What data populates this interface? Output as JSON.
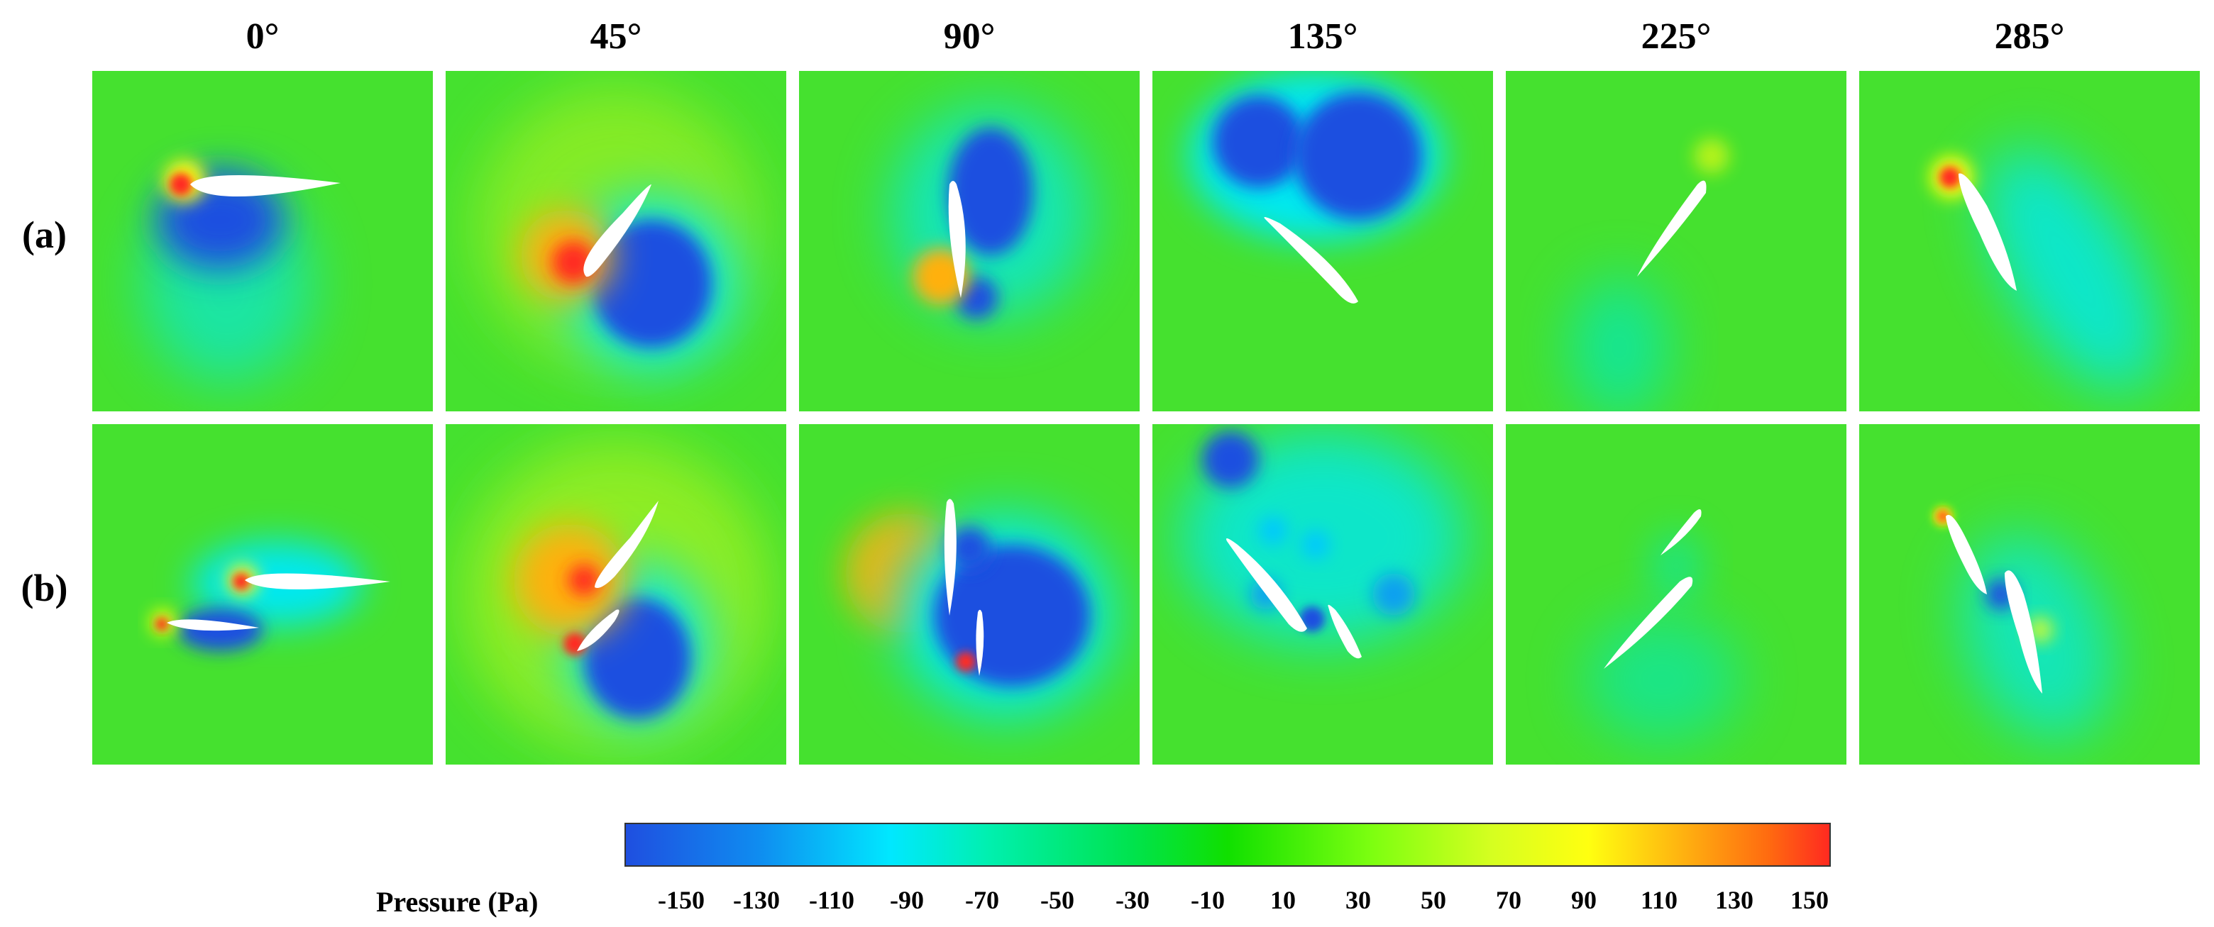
{
  "columns": [
    "0°",
    "45°",
    "90°",
    "135°",
    "225°",
    "285°"
  ],
  "rows": [
    "(a)",
    "(b)"
  ],
  "colorbar": {
    "title": "Pressure (Pa)",
    "min": -150,
    "max": 150,
    "ticks": [
      "-150",
      "-130",
      "-110",
      "-90",
      "-70",
      "-50",
      "-30",
      "-10",
      "10",
      "30",
      "50",
      "70",
      "90",
      "110",
      "130",
      "150"
    ],
    "colors": {
      "low": "#1f4fe0",
      "mid": "#10e000",
      "high": "#ff2a20",
      "neutral": "#45e12f"
    }
  }
}
